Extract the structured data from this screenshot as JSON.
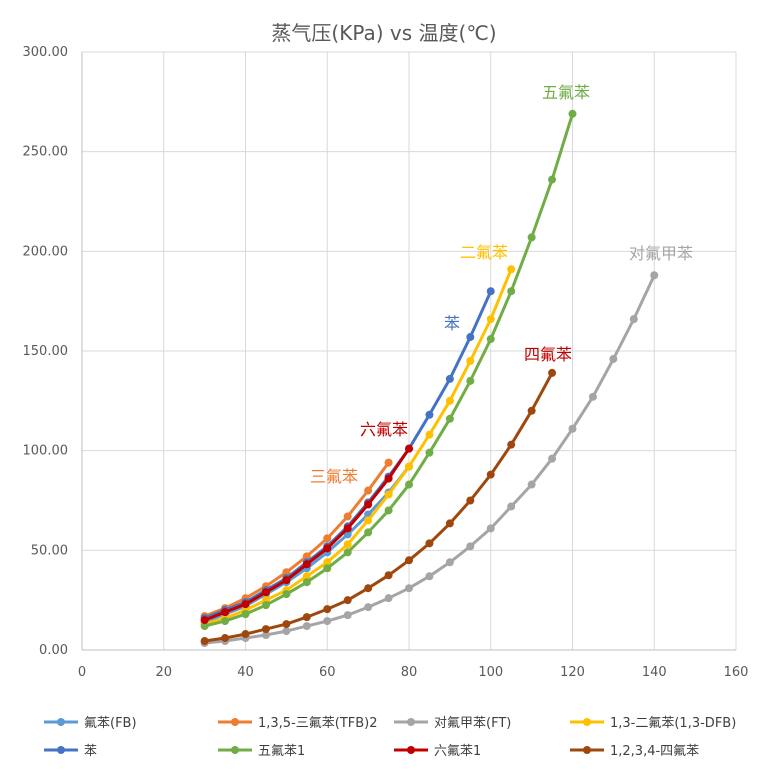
{
  "chart_data": {
    "type": "line",
    "title": "蒸气压(KPa) vs 温度(℃)",
    "xlabel": "",
    "ylabel": "",
    "xlim": [
      0,
      160
    ],
    "ylim": [
      0,
      300
    ],
    "x_ticks": [
      "0",
      "20",
      "40",
      "60",
      "80",
      "100",
      "120",
      "140",
      "160"
    ],
    "y_ticks": [
      "0.00",
      "50.00",
      "100.00",
      "150.00",
      "200.00",
      "250.00",
      "300.00"
    ],
    "grid": true,
    "legend_position": "bottom",
    "series": [
      {
        "name": "氟苯(FB)",
        "color": "#5b9bd5",
        "x": [
          30,
          35,
          40,
          45,
          50,
          55,
          60,
          65,
          70,
          75,
          80
        ],
        "y": [
          14,
          18,
          22,
          28,
          34,
          41,
          49,
          58,
          68,
          79,
          92
        ]
      },
      {
        "name": "1,3,5-三氟苯(TFB)2",
        "color": "#ed7d31",
        "x": [
          30,
          35,
          40,
          45,
          50,
          55,
          60,
          65,
          70,
          75
        ],
        "y": [
          17,
          21,
          26,
          32,
          39,
          47,
          56,
          67,
          80,
          94
        ]
      },
      {
        "name": "对氟甲苯(FT)",
        "color": "#a5a5a5",
        "x": [
          30,
          35,
          40,
          45,
          50,
          55,
          60,
          65,
          70,
          75,
          80,
          85,
          90,
          95,
          100,
          105,
          110,
          115,
          120,
          125,
          130,
          135,
          140
        ],
        "y": [
          3.5,
          4.5,
          6,
          7.5,
          9.5,
          12,
          14.5,
          17.5,
          21.5,
          26,
          31,
          37,
          44,
          52,
          61,
          72,
          83,
          96,
          111,
          127,
          146,
          166,
          188
        ]
      },
      {
        "name": "1,3-二氟苯(1,3-DFB)",
        "color": "#ffc000",
        "x": [
          30,
          35,
          40,
          45,
          50,
          55,
          60,
          65,
          70,
          75,
          80,
          85,
          90,
          95,
          100,
          105
        ],
        "y": [
          13,
          16,
          20,
          25,
          30,
          37,
          44,
          53,
          65,
          78,
          92,
          108,
          125,
          145,
          166,
          191
        ]
      },
      {
        "name": "苯",
        "color": "#4472c4",
        "x": [
          30,
          35,
          40,
          45,
          50,
          55,
          60,
          65,
          70,
          75,
          80,
          85,
          90,
          95,
          100
        ],
        "y": [
          16,
          20,
          24,
          30,
          36,
          44,
          52,
          62,
          74,
          87,
          101,
          118,
          136,
          157,
          180
        ]
      },
      {
        "name": "五氟苯1",
        "color": "#70ad47",
        "x": [
          30,
          35,
          40,
          45,
          50,
          55,
          60,
          65,
          70,
          75,
          80,
          85,
          90,
          95,
          100,
          105,
          110,
          115,
          120
        ],
        "y": [
          12,
          14.5,
          18,
          22.5,
          28,
          34,
          41,
          49,
          59,
          70,
          83,
          99,
          116,
          135,
          156,
          180,
          207,
          236,
          269
        ]
      },
      {
        "name": "六氟苯1",
        "color": "#c00000",
        "x": [
          30,
          35,
          40,
          45,
          50,
          55,
          60,
          65,
          70,
          75,
          80
        ],
        "y": [
          15,
          19,
          23,
          29,
          35,
          43,
          51,
          61,
          73,
          86,
          101
        ]
      },
      {
        "name": "1,2,3,4-四氟苯",
        "color": "#9e480e",
        "x": [
          30,
          35,
          40,
          45,
          50,
          55,
          60,
          65,
          70,
          75,
          80,
          85,
          90,
          95,
          100,
          105,
          110,
          115
        ],
        "y": [
          4.5,
          6,
          8,
          10.5,
          13,
          16.5,
          20.5,
          25,
          31,
          37.5,
          45,
          53.5,
          63.5,
          75,
          88,
          103,
          120,
          139
        ]
      }
    ],
    "annotations": [
      {
        "text": "五氟苯",
        "color": "#70ad47"
      },
      {
        "text": "二氟苯",
        "color": "#ffc000"
      },
      {
        "text": "对氟甲苯",
        "color": "#a5a5a5"
      },
      {
        "text": "苯",
        "color": "#4472c4"
      },
      {
        "text": "四氟苯",
        "color": "#c00000"
      },
      {
        "text": "六氟苯",
        "color": "#c00000"
      },
      {
        "text": "三氟苯",
        "color": "#ed7d31"
      }
    ]
  }
}
